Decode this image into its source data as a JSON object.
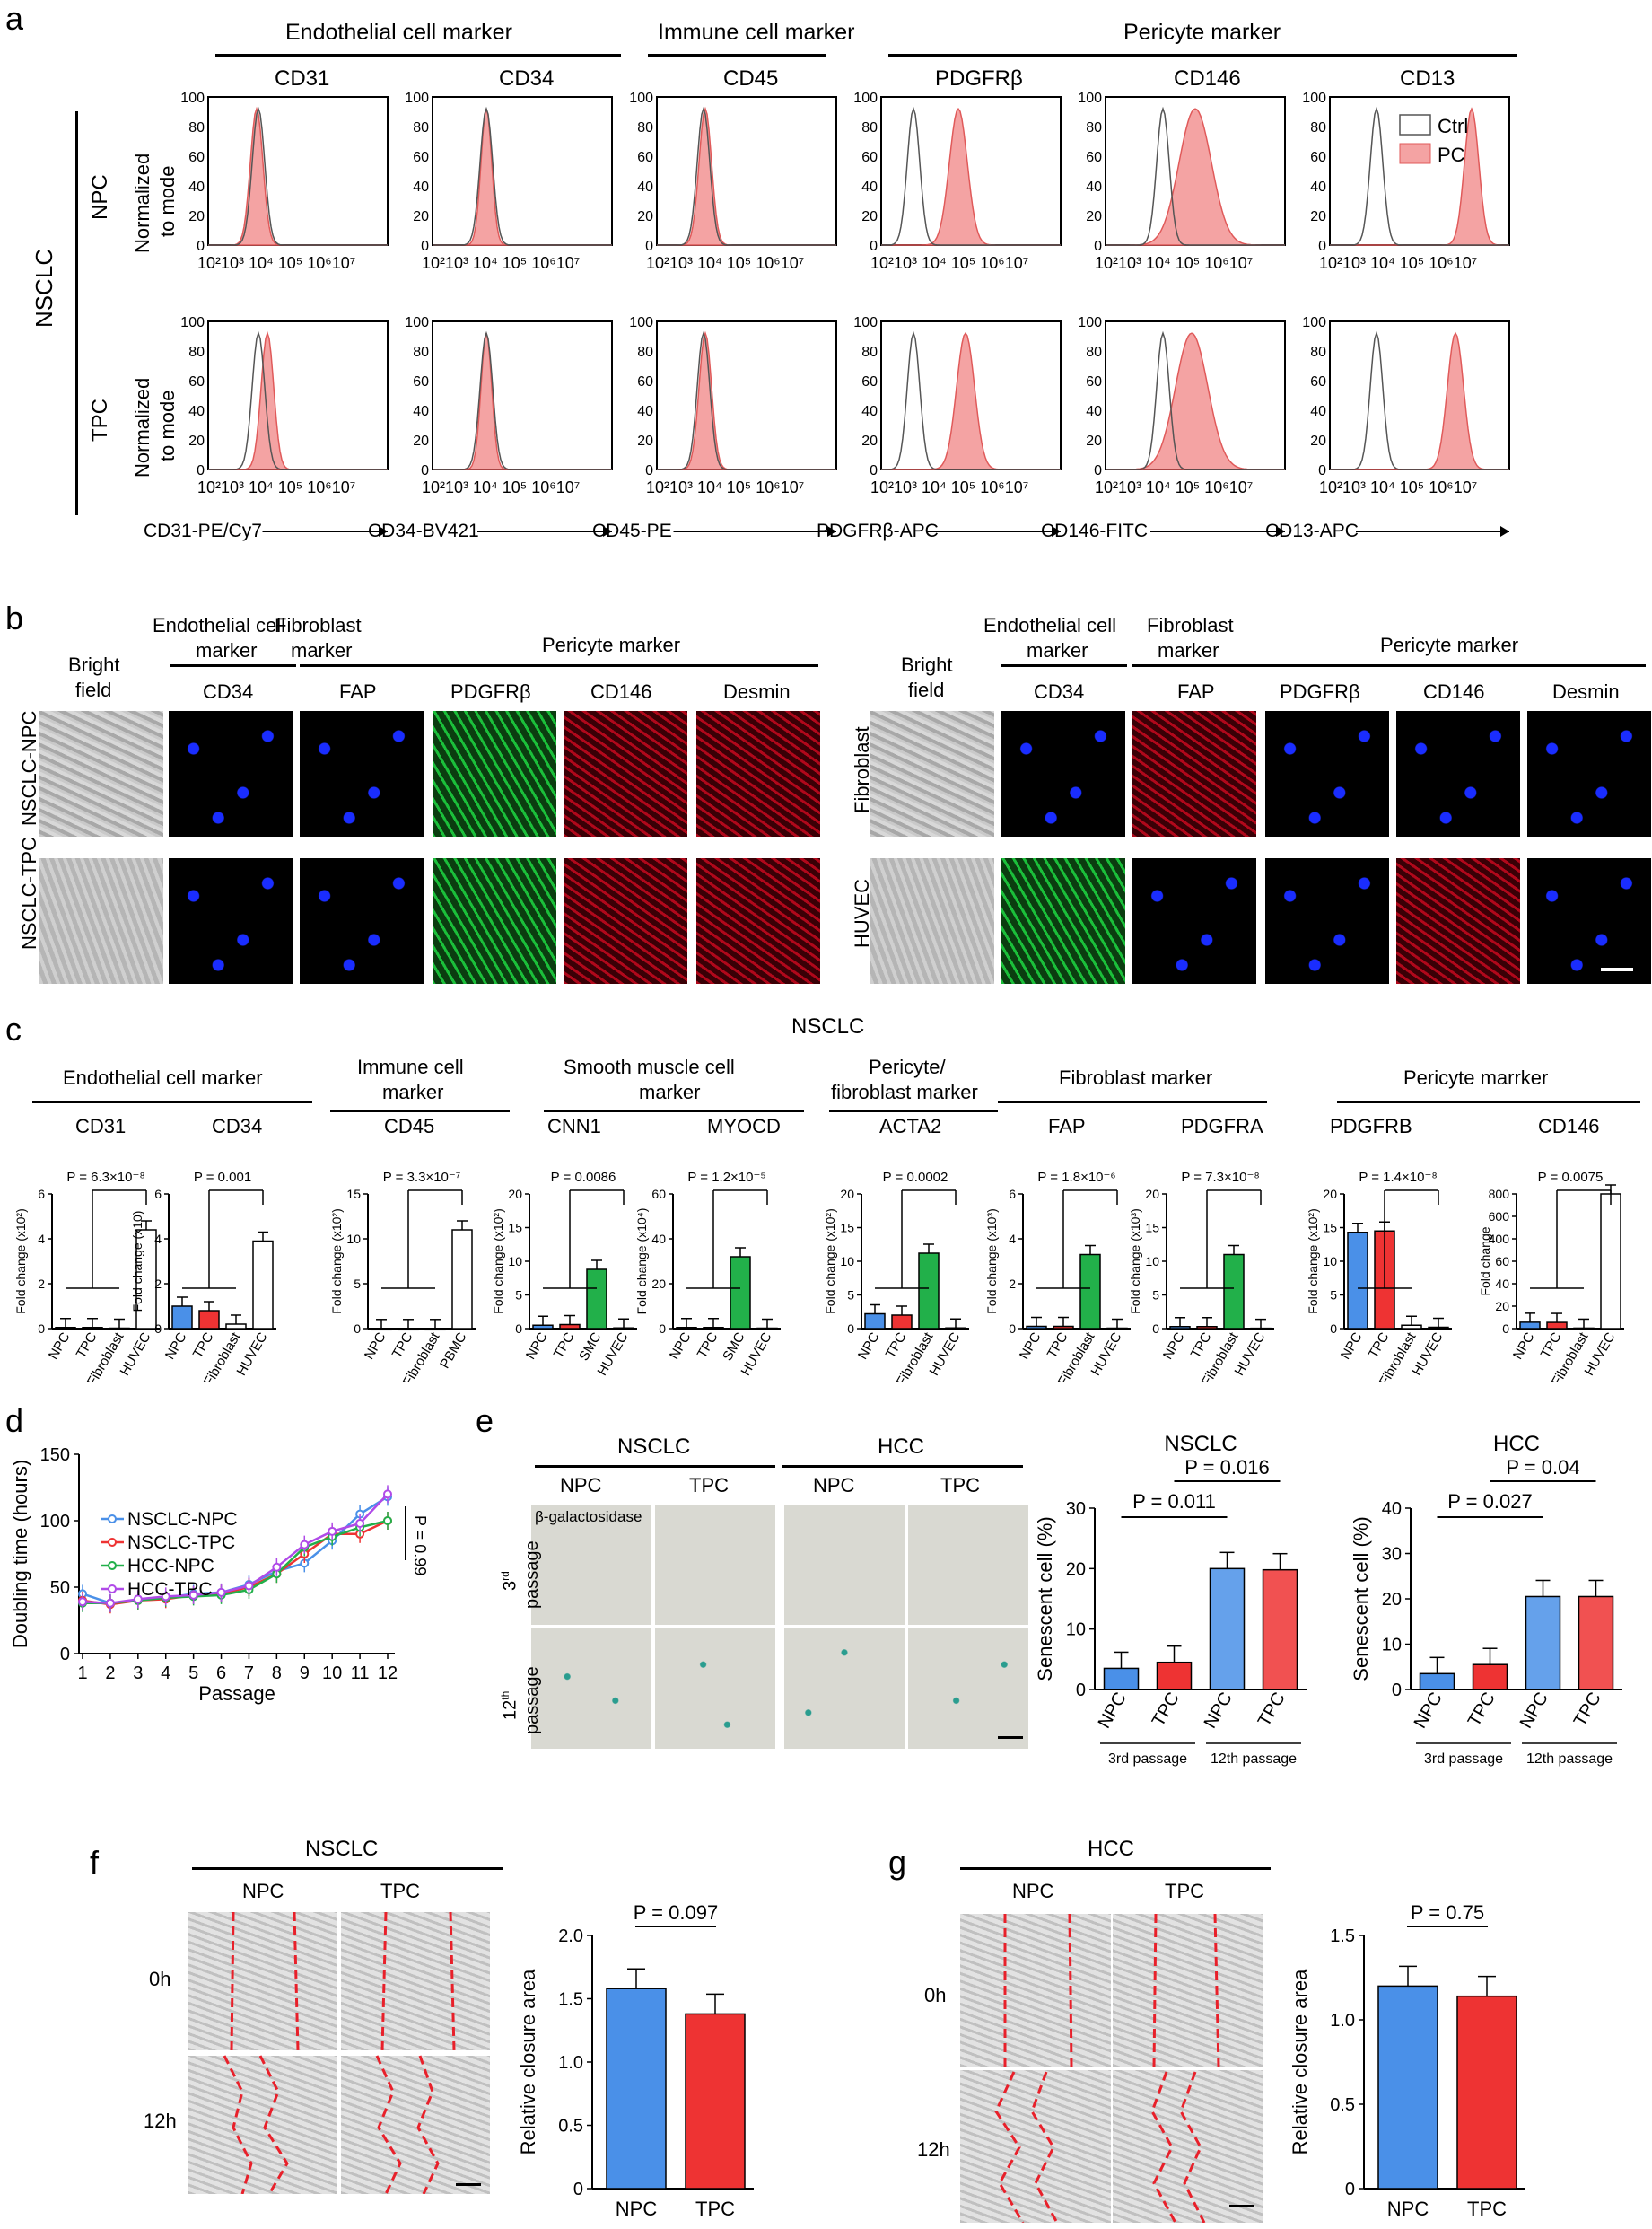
{
  "panel_letters": {
    "a": "a",
    "b": "b",
    "c": "c",
    "d": "d",
    "e": "e",
    "f": "f",
    "g": "g"
  },
  "panel_a": {
    "groups": [
      "Endothelial cell marker",
      "Immune cell marker",
      "Pericyte marker"
    ],
    "markers": [
      "CD31",
      "CD34",
      "CD45",
      "PDGFRβ",
      "CD146",
      "CD13"
    ],
    "side_label": "NSCLC",
    "row_labels": [
      "NPC",
      "TPC"
    ],
    "ylabel_line1": "Normalized",
    "ylabel_line2": "to mode",
    "y_ticks": [
      "100",
      "80",
      "60",
      "40",
      "20",
      "0"
    ],
    "x_tick_text": "10²10³ 10⁴ 10⁵ 10⁶10⁷",
    "channels": [
      "CD31-PE/Cy7",
      "CD34-BV421",
      "CD45-PE",
      "PDGFRβ-APC",
      "CD146-FITC",
      "CD13-APC"
    ],
    "legend": [
      "Ctrl",
      "PC"
    ],
    "colors": {
      "ctrl": "#555555",
      "pc": "#f4a3a3",
      "pc_edge": "#e05a5a"
    }
  },
  "panel_b": {
    "left_headers": {
      "bf1": "Bright",
      "bf2": "field",
      "ec1": "Endothelial cell",
      "ec2": "marker",
      "fb1": "Fibroblast",
      "fb2": "marker",
      "pc": "Pericyte marker"
    },
    "stains": [
      "CD34",
      "FAP",
      "PDGFRβ",
      "CD146",
      "Desmin"
    ],
    "left_rows": [
      "NSCLC-NPC",
      "NSCLC-TPC"
    ],
    "right_rows": [
      "Fibroblast",
      "HUVEC"
    ]
  },
  "panel_c": {
    "title": "NSCLC",
    "groups": {
      "ec": "Endothelial cell marker",
      "im1": "Immune cell",
      "im2": "marker",
      "sm1": "Smooth muscle cell",
      "sm2": "marker",
      "pf1": "Pericyte/",
      "pf2": "fibroblast marker",
      "fb": "Fibroblast marker",
      "pc": "Pericyte marrker"
    },
    "genes": [
      "CD31",
      "CD34",
      "CD45",
      "CNN1",
      "MYOCD",
      "ACTA2",
      "FAP",
      "PDGFRA",
      "PDGFRB",
      "CD146"
    ],
    "pvalues": [
      "P = 6.3×10⁻⁸",
      "P = 0.001",
      "P = 3.3×10⁻⁷",
      "P = 0.0086",
      "P = 1.2×10⁻⁵",
      "P = 0.0002",
      "P = 1.8×10⁻⁶",
      "P = 7.3×10⁻⁸",
      "P = 1.4×10⁻⁸",
      "P = 0.0075"
    ],
    "ylabels": [
      "Fold change (x10²)",
      "Fold change (x10)",
      "Fold change (x10²)",
      "Fold change (x10²)",
      "Fold change (x10⁴)",
      "Fold change (x10²)",
      "Fold change (x10³)",
      "Fold change (x10³)",
      "Fold change (x10²)",
      "Fold change"
    ],
    "cats": [
      [
        "NPC",
        "TPC",
        "Fibroblast",
        "HUVEC"
      ],
      [
        "NPC",
        "TPC",
        "Fibroblast",
        "HUVEC"
      ],
      [
        "NPC",
        "TPC",
        "Fibroblast",
        "PBMC"
      ],
      [
        "NPC",
        "TPC",
        "SMC",
        "HUVEC"
      ],
      [
        "NPC",
        "TPC",
        "SMC",
        "HUVEC"
      ],
      [
        "NPC",
        "TPC",
        "Fibroblast",
        "HUVEC"
      ],
      [
        "NPC",
        "TPC",
        "Fibroblast",
        "HUVEC"
      ],
      [
        "NPC",
        "TPC",
        "Fibroblast",
        "HUVEC"
      ],
      [
        "NPC",
        "TPC",
        "Fibroblast",
        "HUVEC"
      ],
      [
        "NPC",
        "TPC",
        "Fibroblast",
        "HUVEC"
      ]
    ],
    "colors": {
      "blue": "#4a90e8",
      "red": "#ee3333",
      "green": "#22b04a",
      "npc": "#4a90e8",
      "tpc": "#ee3333"
    }
  },
  "chart_data": [
    {
      "type": "bar",
      "categories": [
        "NPC",
        "TPC",
        "Fibroblast",
        "HUVEC"
      ],
      "values": [
        0.05,
        0.05,
        0.02,
        4.4
      ],
      "ylim": [
        0,
        6
      ],
      "yticks": [
        "0",
        "2",
        "4",
        "6"
      ],
      "ylabel": "Fold change (x10²)",
      "colors": [
        "#4a90e8",
        "#ee3333",
        "#888888",
        "#888888"
      ]
    },
    {
      "type": "bar",
      "categories": [
        "NPC",
        "TPC",
        "Fibroblast",
        "HUVEC"
      ],
      "values": [
        1.0,
        0.8,
        0.2,
        3.9
      ],
      "ylim": [
        0,
        6
      ],
      "yticks": [
        "0",
        "2",
        "4",
        "6"
      ],
      "ylabel": "Fold change (x10)",
      "colors": [
        "#4a90e8",
        "#ee3333",
        "#888888",
        "#888888"
      ]
    },
    {
      "type": "bar",
      "categories": [
        "NPC",
        "TPC",
        "Fibroblast",
        "PBMC"
      ],
      "values": [
        0.02,
        0.02,
        0.02,
        11.0
      ],
      "ylim": [
        0,
        15
      ],
      "yticks": [
        "0",
        "5",
        "10",
        "15"
      ],
      "ylabel": "Fold change (x10²)",
      "colors": [
        "#4a90e8",
        "#ee3333",
        "#888888",
        "#888888"
      ]
    },
    {
      "type": "bar",
      "categories": [
        "NPC",
        "TPC",
        "SMC",
        "HUVEC"
      ],
      "values": [
        0.5,
        0.6,
        8.8,
        0.1
      ],
      "ylim": [
        0,
        20
      ],
      "yticks": [
        "0",
        "5",
        "10",
        "15",
        "20"
      ],
      "ylabel": "Fold change (x10²)",
      "colors": [
        "#4a90e8",
        "#ee3333",
        "#22b04a",
        "#888888"
      ]
    },
    {
      "type": "bar",
      "categories": [
        "NPC",
        "TPC",
        "SMC",
        "HUVEC"
      ],
      "values": [
        0.5,
        0.5,
        32,
        0.2
      ],
      "ylim": [
        0,
        60
      ],
      "yticks": [
        "0",
        "20",
        "40",
        "60"
      ],
      "ylabel": "Fold change (x10⁴)",
      "colors": [
        "#4a90e8",
        "#ee3333",
        "#22b04a",
        "#888888"
      ]
    },
    {
      "type": "bar",
      "categories": [
        "NPC",
        "TPC",
        "Fibroblast",
        "HUVEC"
      ],
      "values": [
        2.2,
        2.0,
        11.2,
        0.1
      ],
      "ylim": [
        0,
        20
      ],
      "yticks": [
        "0",
        "5",
        "10",
        "15",
        "20"
      ],
      "ylabel": "Fold change (x10²)",
      "colors": [
        "#4a90e8",
        "#ee3333",
        "#22b04a",
        "#888888"
      ]
    },
    {
      "type": "bar",
      "categories": [
        "NPC",
        "TPC",
        "Fibroblast",
        "HUVEC"
      ],
      "values": [
        0.1,
        0.1,
        3.3,
        0.02
      ],
      "ylim": [
        0,
        6
      ],
      "yticks": [
        "0",
        "2",
        "4",
        "6"
      ],
      "ylabel": "Fold change (x10³)",
      "colors": [
        "#4a90e8",
        "#ee3333",
        "#22b04a",
        "#888888"
      ]
    },
    {
      "type": "bar",
      "categories": [
        "NPC",
        "TPC",
        "Fibroblast",
        "HUVEC"
      ],
      "values": [
        0.3,
        0.3,
        11.0,
        0.05
      ],
      "ylim": [
        0,
        20
      ],
      "yticks": [
        "0",
        "5",
        "10",
        "15",
        "20"
      ],
      "ylabel": "Fold change (x10³)",
      "colors": [
        "#4a90e8",
        "#ee3333",
        "#22b04a",
        "#888888"
      ]
    },
    {
      "type": "bar",
      "categories": [
        "NPC",
        "TPC",
        "Fibroblast",
        "HUVEC"
      ],
      "values": [
        14.3,
        14.5,
        0.5,
        0.2
      ],
      "ylim": [
        0,
        20
      ],
      "yticks": [
        "0",
        "5",
        "10",
        "15",
        "20"
      ],
      "ylabel": "Fold change (x10²)",
      "colors": [
        "#4a90e8",
        "#ee3333",
        "#888888",
        "#888888"
      ]
    },
    {
      "type": "bar",
      "categories": [
        "NPC",
        "TPC",
        "Fibroblast",
        "HUVEC"
      ],
      "values": [
        38,
        37,
        3,
        620
      ],
      "ylim": [
        0,
        800
      ],
      "yticks": [
        "0",
        "20",
        "40",
        "60",
        "400",
        "600",
        "800"
      ],
      "ylabel": "Fold change",
      "colors": [
        "#4a90e8",
        "#ee3333",
        "#888888",
        "#888888"
      ]
    },
    {
      "type": "line",
      "x": [
        1,
        2,
        3,
        4,
        5,
        6,
        7,
        8,
        9,
        10,
        11,
        12
      ],
      "series": [
        {
          "name": "NSCLC-NPC",
          "values": [
            45,
            38,
            40,
            42,
            45,
            46,
            52,
            62,
            68,
            85,
            105,
            118
          ],
          "color": "#4a90e8"
        },
        {
          "name": "NSCLC-TPC",
          "values": [
            40,
            37,
            40,
            41,
            44,
            45,
            50,
            60,
            75,
            90,
            90,
            100
          ],
          "color": "#ee3333"
        },
        {
          "name": "HCC-NPC",
          "values": [
            38,
            38,
            40,
            42,
            43,
            44,
            48,
            60,
            80,
            88,
            95,
            100
          ],
          "color": "#22b04a"
        },
        {
          "name": "HCC-TPC",
          "values": [
            39,
            38,
            41,
            43,
            44,
            46,
            51,
            65,
            82,
            92,
            98,
            120
          ],
          "color": "#b04ae8"
        }
      ],
      "xlabel": "Passage",
      "ylabel": "Doubling time (hours)",
      "ylim": [
        0,
        150
      ],
      "yticks": [
        "0",
        "50",
        "100",
        "150"
      ],
      "xticks": [
        "1",
        "2",
        "3",
        "4",
        "5",
        "6",
        "7",
        "8",
        "9",
        "10",
        "11",
        "12"
      ],
      "pvalue": "P = 0.99"
    },
    {
      "type": "bar",
      "title": "NSCLC",
      "categories": [
        "NPC",
        "TPC",
        "NPC",
        "TPC"
      ],
      "values": [
        3.5,
        4.5,
        20,
        19.8
      ],
      "ylim": [
        0,
        30
      ],
      "yticks": [
        "0",
        "10",
        "20",
        "30"
      ],
      "ylabel": "Senescent cell (%)",
      "pvalues": [
        "P = 0.011",
        "P = 0.016"
      ],
      "group_labels": [
        "3rd passage",
        "12th passage"
      ]
    },
    {
      "type": "bar",
      "title": "HCC",
      "categories": [
        "NPC",
        "TPC",
        "NPC",
        "TPC"
      ],
      "values": [
        3.5,
        5.5,
        20.5,
        20.5
      ],
      "ylim": [
        0,
        40
      ],
      "yticks": [
        "0",
        "10",
        "20",
        "30",
        "40"
      ],
      "ylabel": "Senescent cell (%)",
      "pvalues": [
        "P = 0.027",
        "P = 0.04"
      ],
      "group_labels": [
        "3rd passage",
        "12th passage"
      ]
    },
    {
      "type": "bar",
      "title": "NSCLC",
      "categories": [
        "NPC",
        "TPC"
      ],
      "values": [
        1.58,
        1.38
      ],
      "ylim": [
        0,
        2.0
      ],
      "yticks": [
        "0",
        "0.5",
        "1.0",
        "1.5",
        "2.0"
      ],
      "ylabel": "Relative closure area",
      "pvalue": "P = 0.097"
    },
    {
      "type": "bar",
      "title": "HCC",
      "categories": [
        "NPC",
        "TPC"
      ],
      "values": [
        1.2,
        1.14
      ],
      "ylim": [
        0,
        1.5
      ],
      "yticks": [
        "0",
        "0.5",
        "1.0",
        "1.5"
      ],
      "ylabel": "Relative closure area",
      "pvalue": "P = 0.75"
    }
  ],
  "panel_d": {
    "ylabel": "Doubling time (hours)",
    "xlabel": "Passage",
    "legend": [
      "NSCLC-NPC",
      "NSCLC-TPC",
      "HCC-NPC",
      "HCC-TPC"
    ],
    "pvalue": "P = 0.99"
  },
  "panel_e": {
    "groups": [
      "NSCLC",
      "HCC"
    ],
    "cols": [
      "NPC",
      "TPC",
      "NPC",
      "TPC"
    ],
    "stain": "β-galactosidase",
    "rows": [
      "3rd passage",
      "12th passage"
    ],
    "row_nums": [
      "3",
      "12"
    ],
    "row_sups": [
      "rd",
      "th"
    ],
    "row_word": "passage",
    "chart_titles": [
      "NSCLC",
      "HCC"
    ],
    "pvals_nsclc": [
      "P = 0.011",
      "P = 0.016"
    ],
    "pvals_hcc": [
      "P = 0.027",
      "P = 0.04"
    ],
    "ylabel": "Senescent cell (%)",
    "passage_labels": [
      "3rd passage",
      "12th passage"
    ]
  },
  "panel_f": {
    "title": "NSCLC",
    "cols": [
      "NPC",
      "TPC"
    ],
    "rows": [
      "0h",
      "12h"
    ],
    "ylabel": "Relative closure area",
    "pvalue": "P = 0.097",
    "cats": [
      "NPC",
      "TPC"
    ]
  },
  "panel_g": {
    "title": "HCC",
    "cols": [
      "NPC",
      "TPC"
    ],
    "rows": [
      "0h",
      "12h"
    ],
    "ylabel": "Relative closure area",
    "pvalue": "P = 0.75",
    "cats": [
      "NPC",
      "TPC"
    ]
  }
}
